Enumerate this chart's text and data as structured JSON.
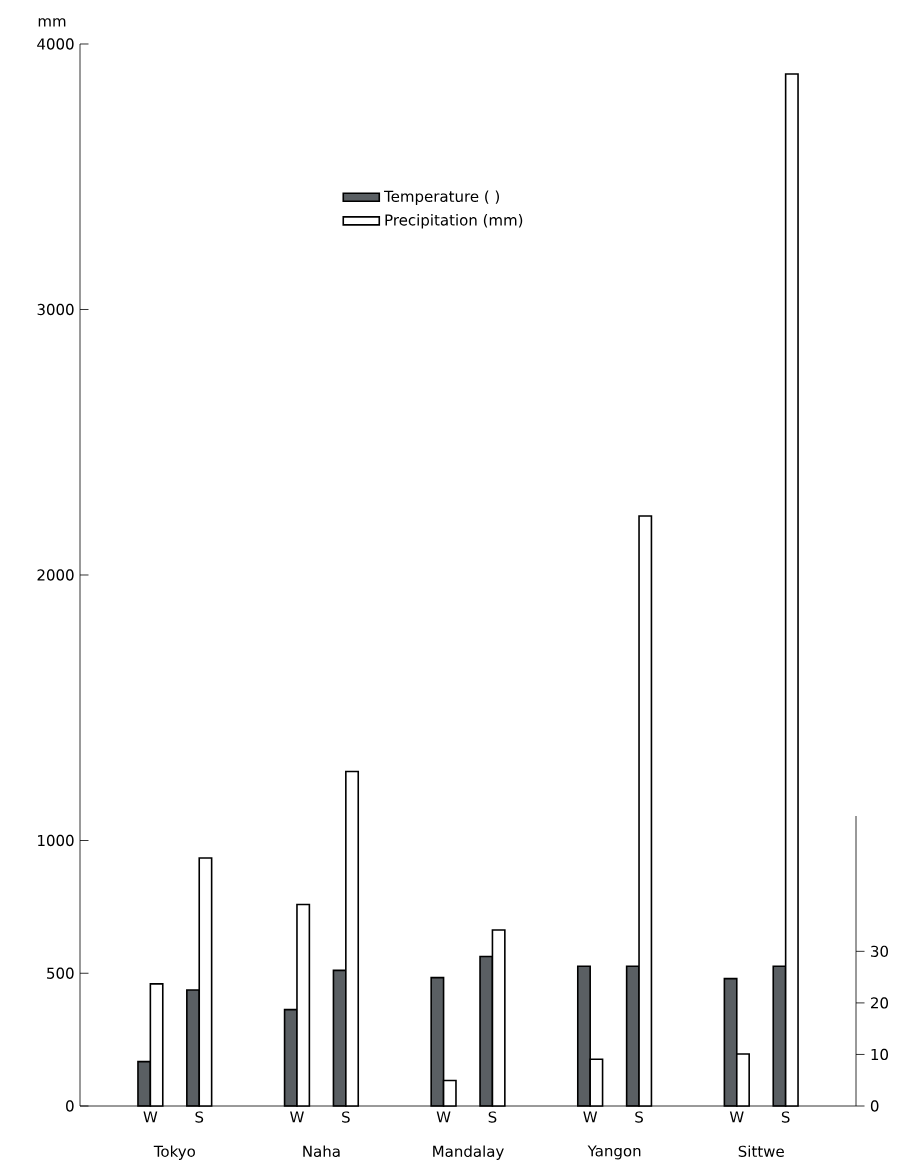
{
  "chart_data": {
    "type": "bar",
    "ylabel": "mm",
    "categories": [
      "W",
      "S",
      "W",
      "S",
      "W",
      "S",
      "W",
      "S",
      "W",
      "S"
    ],
    "series": [
      {
        "name": "Temperature (   )",
        "color": "#5a5f63",
        "axis": "y2",
        "values": [
          8.6,
          22.5,
          18.7,
          26.3,
          24.9,
          29,
          27.1,
          27.1,
          24.7,
          27.1
        ]
      },
      {
        "name": "Precipitation (mm)",
        "color": "#ffffff",
        "values": [
          460,
          934,
          759,
          1260,
          96,
          663,
          176,
          2222,
          196,
          3887
        ]
      }
    ],
    "ylim": [
      0,
      4000
    ],
    "yticks": [
      0,
      500,
      1000,
      2000,
      3000,
      4000
    ],
    "y2lim": [
      0,
      206
    ],
    "y2ticks": [
      0,
      10,
      20,
      30
    ],
    "grid": false,
    "legend": "top",
    "annotations": [
      "Tokyo",
      "Naha",
      "Mandalay",
      "Yangon",
      "Sittwe"
    ]
  }
}
